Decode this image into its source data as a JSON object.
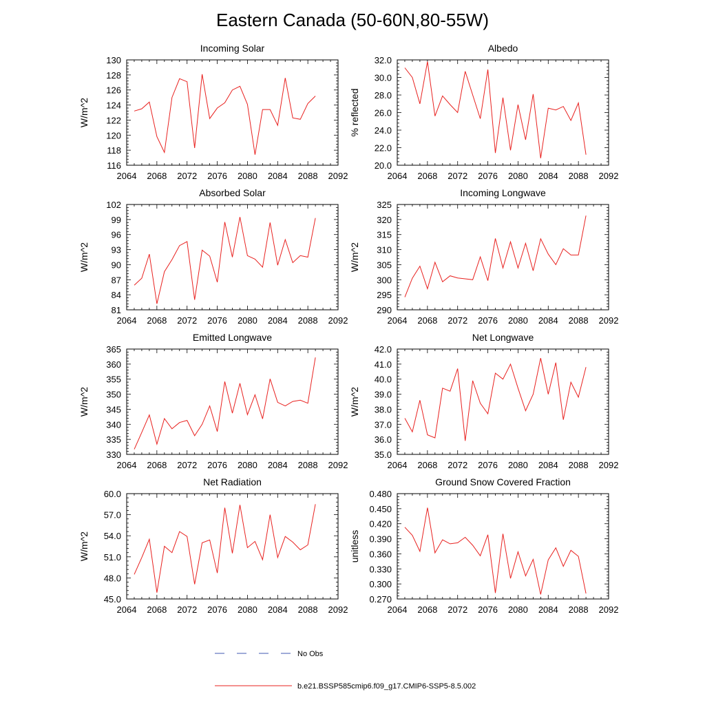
{
  "title": "Eastern Canada (50-60N,80-55W)",
  "legend": [
    {
      "label": "No Obs",
      "color": "#3f57b0",
      "style": "dashed"
    },
    {
      "label": "b.e21.BSSP585cmip6.f09_g17.CMIP6-SSP5-8.5.002",
      "color": "#e8201e",
      "style": "solid"
    }
  ],
  "chart_data": [
    {
      "type": "line",
      "title": "Incoming Solar",
      "ylabel": "W/m^2",
      "xlim": [
        2064,
        2092
      ],
      "xticks": [
        "2064",
        "2068",
        "2072",
        "2076",
        "2080",
        "2084",
        "2088",
        "2092"
      ],
      "ylim": [
        116,
        130
      ],
      "yticks": [
        "116",
        "118",
        "120",
        "122",
        "124",
        "126",
        "128",
        "130"
      ],
      "x": [
        2065,
        2066,
        2067,
        2068,
        2069,
        2070,
        2071,
        2072,
        2073,
        2074,
        2075,
        2076,
        2077,
        2078,
        2079,
        2080,
        2081,
        2082,
        2083,
        2084,
        2085,
        2086,
        2087,
        2088,
        2089
      ],
      "series": [
        {
          "color": "#e8201e",
          "values": [
            123.2,
            123.5,
            124.4,
            119.8,
            117.7,
            125.0,
            127.5,
            127.1,
            118.3,
            128.1,
            122.2,
            123.6,
            124.3,
            126.0,
            126.5,
            124.1,
            117.4,
            123.4,
            123.4,
            121.3,
            127.6,
            122.3,
            122.1,
            124.2,
            125.2
          ]
        }
      ]
    },
    {
      "type": "line",
      "title": "Albedo",
      "ylabel": "% reflected",
      "xlim": [
        2064,
        2092
      ],
      "xticks": [
        "2064",
        "2068",
        "2072",
        "2076",
        "2080",
        "2084",
        "2088",
        "2092"
      ],
      "ylim": [
        20,
        32
      ],
      "yticks": [
        "20.0",
        "22.0",
        "24.0",
        "26.0",
        "28.0",
        "30.0",
        "32.0"
      ],
      "x": [
        2065,
        2066,
        2067,
        2068,
        2069,
        2070,
        2071,
        2072,
        2073,
        2074,
        2075,
        2076,
        2077,
        2078,
        2079,
        2080,
        2081,
        2082,
        2083,
        2084,
        2085,
        2086,
        2087,
        2088,
        2089
      ],
      "series": [
        {
          "color": "#e8201e",
          "values": [
            31.1,
            30.0,
            27.0,
            31.8,
            25.6,
            27.9,
            26.9,
            26.0,
            30.7,
            28.0,
            25.3,
            30.9,
            21.4,
            27.7,
            21.7,
            26.9,
            22.9,
            28.1,
            20.8,
            26.5,
            26.3,
            26.7,
            25.1,
            27.1,
            21.2
          ]
        }
      ]
    },
    {
      "type": "line",
      "title": "Absorbed Solar",
      "ylabel": "W/m^2",
      "xlim": [
        2064,
        2092
      ],
      "xticks": [
        "2064",
        "2068",
        "2072",
        "2076",
        "2080",
        "2084",
        "2088",
        "2092"
      ],
      "ylim": [
        81,
        102
      ],
      "yticks": [
        "81",
        "84",
        "87",
        "90",
        "93",
        "96",
        "99",
        "102"
      ],
      "x": [
        2065,
        2066,
        2067,
        2068,
        2069,
        2070,
        2071,
        2072,
        2073,
        2074,
        2075,
        2076,
        2077,
        2078,
        2079,
        2080,
        2081,
        2082,
        2083,
        2084,
        2085,
        2086,
        2087,
        2088,
        2089
      ],
      "series": [
        {
          "color": "#e8201e",
          "values": [
            85.9,
            87.3,
            92.1,
            82.2,
            88.6,
            91.0,
            93.8,
            94.6,
            83.0,
            92.9,
            91.7,
            86.5,
            98.5,
            91.5,
            99.5,
            91.8,
            91.1,
            89.5,
            98.4,
            89.9,
            95.0,
            90.4,
            91.8,
            91.5,
            99.3
          ]
        }
      ]
    },
    {
      "type": "line",
      "title": "Incoming Longwave",
      "ylabel": "W/m^2",
      "xlim": [
        2064,
        2092
      ],
      "xticks": [
        "2064",
        "2068",
        "2072",
        "2076",
        "2080",
        "2084",
        "2088",
        "2092"
      ],
      "ylim": [
        290,
        325
      ],
      "yticks": [
        "290",
        "295",
        "300",
        "305",
        "310",
        "315",
        "320",
        "325"
      ],
      "x": [
        2065,
        2066,
        2067,
        2068,
        2069,
        2070,
        2071,
        2072,
        2073,
        2074,
        2075,
        2076,
        2077,
        2078,
        2079,
        2080,
        2081,
        2082,
        2083,
        2084,
        2085,
        2086,
        2087,
        2088,
        2089
      ],
      "series": [
        {
          "color": "#e8201e",
          "values": [
            294.2,
            300.5,
            304.5,
            297.0,
            305.8,
            299.3,
            301.3,
            300.6,
            300.3,
            300.0,
            307.6,
            299.7,
            313.7,
            303.9,
            312.6,
            303.9,
            312.1,
            303.0,
            313.6,
            308.5,
            305.0,
            310.3,
            308.2,
            308.2,
            321.3
          ]
        }
      ]
    },
    {
      "type": "line",
      "title": "Emitted Longwave",
      "ylabel": "W/m^2",
      "xlim": [
        2064,
        2092
      ],
      "xticks": [
        "2064",
        "2068",
        "2072",
        "2076",
        "2080",
        "2084",
        "2088",
        "2092"
      ],
      "ylim": [
        330,
        365
      ],
      "yticks": [
        "330",
        "335",
        "340",
        "345",
        "350",
        "355",
        "360",
        "365"
      ],
      "x": [
        2065,
        2066,
        2067,
        2068,
        2069,
        2070,
        2071,
        2072,
        2073,
        2074,
        2075,
        2076,
        2077,
        2078,
        2079,
        2080,
        2081,
        2082,
        2083,
        2084,
        2085,
        2086,
        2087,
        2088,
        2089
      ],
      "series": [
        {
          "color": "#e8201e",
          "values": [
            331.7,
            337.3,
            343.1,
            333.4,
            341.9,
            338.5,
            340.6,
            341.3,
            336.2,
            340.0,
            346.1,
            337.6,
            354.2,
            343.7,
            353.6,
            343.2,
            349.8,
            341.8,
            355.1,
            347.3,
            346.1,
            347.6,
            348.0,
            347.0,
            362.2
          ]
        }
      ]
    },
    {
      "type": "line",
      "title": "Net Longwave",
      "ylabel": "W/m^2",
      "xlim": [
        2064,
        2092
      ],
      "xticks": [
        "2064",
        "2068",
        "2072",
        "2076",
        "2080",
        "2084",
        "2088",
        "2092"
      ],
      "ylim": [
        35,
        42
      ],
      "yticks": [
        "35.0",
        "36.0",
        "37.0",
        "38.0",
        "39.0",
        "40.0",
        "41.0",
        "42.0"
      ],
      "x": [
        2065,
        2066,
        2067,
        2068,
        2069,
        2070,
        2071,
        2072,
        2073,
        2074,
        2075,
        2076,
        2077,
        2078,
        2079,
        2080,
        2081,
        2082,
        2083,
        2084,
        2085,
        2086,
        2087,
        2088,
        2089
      ],
      "series": [
        {
          "color": "#e8201e",
          "values": [
            37.4,
            36.5,
            38.6,
            36.3,
            36.1,
            39.4,
            39.2,
            40.7,
            35.9,
            39.9,
            38.4,
            37.7,
            40.4,
            40.0,
            41.0,
            39.4,
            37.9,
            39.0,
            41.4,
            39.0,
            41.1,
            37.3,
            39.8,
            38.8,
            40.8
          ]
        }
      ]
    },
    {
      "type": "line",
      "title": "Net Radiation",
      "ylabel": "W/m^2",
      "xlim": [
        2064,
        2092
      ],
      "xticks": [
        "2064",
        "2068",
        "2072",
        "2076",
        "2080",
        "2084",
        "2088",
        "2092"
      ],
      "ylim": [
        45,
        60
      ],
      "yticks": [
        "45.0",
        "48.0",
        "51.0",
        "54.0",
        "57.0",
        "60.0"
      ],
      "x": [
        2065,
        2066,
        2067,
        2068,
        2069,
        2070,
        2071,
        2072,
        2073,
        2074,
        2075,
        2076,
        2077,
        2078,
        2079,
        2080,
        2081,
        2082,
        2083,
        2084,
        2085,
        2086,
        2087,
        2088,
        2089
      ],
      "series": [
        {
          "color": "#e8201e",
          "values": [
            48.5,
            50.9,
            53.5,
            45.9,
            52.5,
            51.6,
            54.6,
            53.9,
            47.1,
            53.0,
            53.4,
            48.7,
            58.0,
            51.5,
            58.4,
            52.3,
            53.2,
            50.6,
            57.0,
            50.9,
            53.9,
            53.1,
            52.0,
            52.7,
            58.5
          ]
        }
      ]
    },
    {
      "type": "line",
      "title": "Ground Snow Covered Fraction",
      "ylabel": "unitless",
      "xlim": [
        2064,
        2092
      ],
      "xticks": [
        "2064",
        "2068",
        "2072",
        "2076",
        "2080",
        "2084",
        "2088",
        "2092"
      ],
      "ylim": [
        0.27,
        0.48
      ],
      "yticks": [
        "0.270",
        "0.300",
        "0.330",
        "0.360",
        "0.390",
        "0.420",
        "0.450",
        "0.480"
      ],
      "x": [
        2065,
        2066,
        2067,
        2068,
        2069,
        2070,
        2071,
        2072,
        2073,
        2074,
        2075,
        2076,
        2077,
        2078,
        2079,
        2080,
        2081,
        2082,
        2083,
        2084,
        2085,
        2086,
        2087,
        2088,
        2089
      ],
      "series": [
        {
          "color": "#e8201e",
          "values": [
            0.413,
            0.397,
            0.365,
            0.452,
            0.362,
            0.388,
            0.38,
            0.382,
            0.393,
            0.377,
            0.356,
            0.398,
            0.282,
            0.4,
            0.311,
            0.364,
            0.316,
            0.349,
            0.279,
            0.348,
            0.372,
            0.335,
            0.367,
            0.355,
            0.281
          ]
        }
      ]
    }
  ]
}
